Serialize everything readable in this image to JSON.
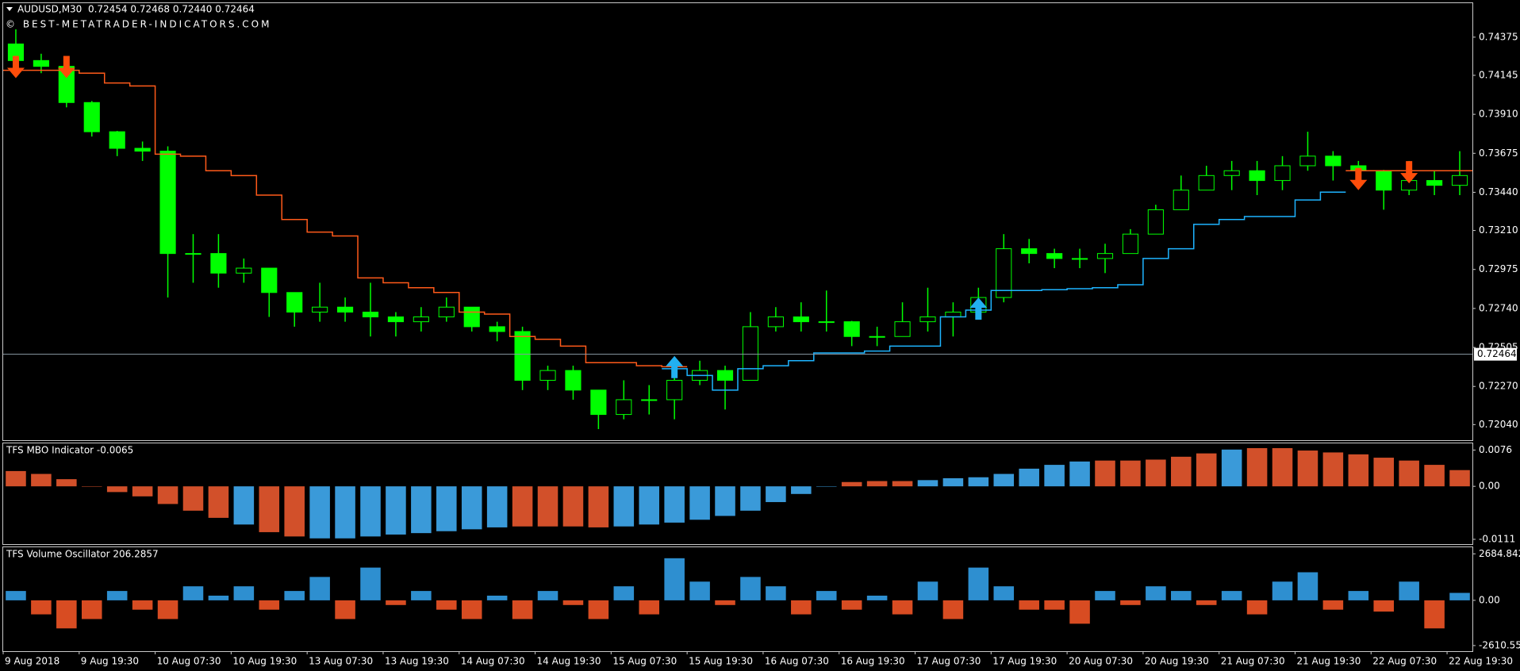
{
  "chart_data": [
    {
      "type": "candlestick",
      "title": "AUDUSD,M30  0.72454 0.72468 0.72440 0.72464",
      "annotation": "© BEST-METATRADER-INDICATORS.COM",
      "categories": [
        "9 Aug 2018",
        null,
        null,
        "9 Aug 19:30",
        null,
        null,
        "10 Aug 07:30",
        null,
        null,
        "10 Aug 19:30",
        null,
        null,
        "13 Aug 07:30",
        null,
        null,
        "13 Aug 19:30",
        null,
        null,
        "14 Aug 07:30",
        null,
        null,
        "14 Aug 19:30",
        null,
        null,
        "15 Aug 07:30",
        null,
        null,
        "15 Aug 19:30",
        null,
        null,
        "16 Aug 07:30",
        null,
        null,
        "16 Aug 19:30",
        null,
        null,
        "17 Aug 07:30",
        null,
        null,
        "17 Aug 19:30",
        null,
        null,
        "20 Aug 07:30",
        null,
        null,
        "20 Aug 19:30",
        null,
        null,
        "21 Aug 07:30",
        null,
        null,
        "21 Aug 19:30",
        null,
        null,
        "22 Aug 07:30",
        null,
        null,
        "22 Aug 19:30"
      ],
      "open": [
        0.74334,
        0.74234,
        0.74199,
        0.73981,
        0.73805,
        0.73705,
        0.73688,
        0.73071,
        0.73071,
        0.72953,
        0.72983,
        0.72836,
        0.72718,
        0.72748,
        0.72718,
        0.72689,
        0.7266,
        0.72689,
        0.72748,
        0.7263,
        0.72601,
        0.72307,
        0.72366,
        0.72248,
        0.72101,
        0.7219,
        0.7219,
        0.72307,
        0.72366,
        0.72307,
        0.7263,
        0.72689,
        0.7266,
        0.7266,
        0.72571,
        0.72571,
        0.7266,
        0.72689,
        0.72718,
        0.72806,
        0.731,
        0.73071,
        0.73041,
        0.73041,
        0.73071,
        0.73188,
        0.73335,
        0.73453,
        0.73541,
        0.7357,
        0.73511,
        0.736,
        0.73658,
        0.736,
        0.7357,
        0.73453,
        0.73511,
        0.73482
      ],
      "high": [
        0.74422,
        0.74275,
        0.74216,
        0.7399,
        0.7381,
        0.73746,
        0.73717,
        0.73188,
        0.73188,
        0.73041,
        0.72983,
        0.72836,
        0.72895,
        0.72806,
        0.72895,
        0.72718,
        0.72748,
        0.72806,
        0.72748,
        0.7266,
        0.7263,
        0.72395,
        0.72395,
        0.72248,
        0.72307,
        0.72278,
        0.72425,
        0.72425,
        0.72395,
        0.72718,
        0.72748,
        0.72777,
        0.72848,
        0.72665,
        0.7263,
        0.72777,
        0.72865,
        0.72777,
        0.72865,
        0.73188,
        0.73159,
        0.731,
        0.731,
        0.7313,
        0.73218,
        0.73365,
        0.73541,
        0.736,
        0.73629,
        0.73629,
        0.73658,
        0.73805,
        0.73688,
        0.73629,
        0.73575,
        0.73629,
        0.7357,
        0.73688
      ],
      "low": [
        0.74158,
        0.74158,
        0.73952,
        0.73776,
        0.73658,
        0.73629,
        0.72806,
        0.72895,
        0.72865,
        0.72895,
        0.72689,
        0.7263,
        0.7266,
        0.7266,
        0.72571,
        0.72571,
        0.72601,
        0.7266,
        0.72601,
        0.72542,
        0.72248,
        0.72248,
        0.7219,
        0.72013,
        0.72072,
        0.72101,
        0.72072,
        0.72278,
        0.72131,
        0.72307,
        0.72601,
        0.72601,
        0.72601,
        0.72513,
        0.72513,
        0.72571,
        0.72601,
        0.72571,
        0.72689,
        0.72777,
        0.73012,
        0.72983,
        0.72983,
        0.72953,
        0.73071,
        0.73188,
        0.73335,
        0.73453,
        0.73453,
        0.73423,
        0.73453,
        0.7357,
        0.73511,
        0.73511,
        0.73335,
        0.73423,
        0.73423,
        0.73423
      ],
      "close": [
        0.74234,
        0.74199,
        0.73981,
        0.73805,
        0.73705,
        0.73688,
        0.73071,
        0.73071,
        0.72953,
        0.72983,
        0.72836,
        0.72718,
        0.72748,
        0.72718,
        0.72689,
        0.7266,
        0.72689,
        0.72748,
        0.7263,
        0.72601,
        0.72307,
        0.72366,
        0.72248,
        0.72101,
        0.7219,
        0.7219,
        0.72307,
        0.72366,
        0.72307,
        0.7263,
        0.72689,
        0.7266,
        0.7266,
        0.72571,
        0.72571,
        0.7266,
        0.72689,
        0.72718,
        0.72806,
        0.731,
        0.73071,
        0.73041,
        0.73041,
        0.73071,
        0.73188,
        0.73335,
        0.73453,
        0.73541,
        0.7357,
        0.73511,
        0.736,
        0.73658,
        0.736,
        0.7357,
        0.73453,
        0.73511,
        0.73482,
        0.73541
      ],
      "candle_color": "#00ff00",
      "stop_down": [
        0.74175,
        0.74175,
        0.74175,
        0.74158,
        0.74099,
        0.74081,
        0.7367,
        0.73658,
        0.7357,
        0.73541,
        0.73423,
        0.73276,
        0.732,
        0.73177,
        0.72924,
        0.72895,
        0.72865,
        0.72836,
        0.72718,
        0.72706,
        0.72571,
        0.72554,
        0.72513,
        0.72413,
        0.72413,
        0.72395,
        0.72389,
        null,
        null,
        null,
        null,
        null,
        null,
        null,
        null,
        null,
        null,
        null,
        null,
        null,
        null,
        null,
        null,
        null,
        null,
        null,
        null,
        null,
        null,
        null,
        null,
        null,
        null,
        0.7357,
        0.7357,
        0.7357,
        0.7357,
        0.7357
      ],
      "stop_down_color": "#ff5a1a",
      "stop_up": [
        null,
        null,
        null,
        null,
        null,
        null,
        null,
        null,
        null,
        null,
        null,
        null,
        null,
        null,
        null,
        null,
        null,
        null,
        null,
        null,
        null,
        null,
        null,
        null,
        null,
        null,
        0.72377,
        0.72336,
        0.72248,
        0.72377,
        0.72395,
        0.72425,
        0.72472,
        0.72472,
        0.72483,
        0.72513,
        0.72513,
        0.72689,
        0.7273,
        0.72848,
        0.72848,
        0.72853,
        0.72859,
        0.72865,
        0.72883,
        0.73041,
        0.731,
        0.73247,
        0.73276,
        0.73294,
        0.73294,
        0.73394,
        0.73441,
        null,
        null,
        null,
        null,
        null
      ],
      "stop_up_color": "#1eb4ff",
      "sell_arrows": [
        0.74128,
        null,
        0.74128,
        null,
        null,
        null,
        null,
        null,
        null,
        null,
        null,
        null,
        null,
        null,
        null,
        null,
        null,
        null,
        null,
        null,
        null,
        null,
        null,
        null,
        null,
        null,
        null,
        null,
        null,
        null,
        null,
        null,
        null,
        null,
        null,
        null,
        null,
        null,
        null,
        null,
        null,
        null,
        null,
        null,
        null,
        null,
        null,
        null,
        null,
        null,
        null,
        null,
        null,
        0.73453,
        null,
        0.73494,
        null,
        null
      ],
      "buy_arrows": [
        null,
        null,
        null,
        null,
        null,
        null,
        null,
        null,
        null,
        null,
        null,
        null,
        null,
        null,
        null,
        null,
        null,
        null,
        null,
        null,
        null,
        null,
        null,
        null,
        null,
        null,
        0.72454,
        null,
        null,
        null,
        null,
        null,
        null,
        null,
        null,
        null,
        null,
        null,
        0.72806,
        null,
        null,
        null,
        null,
        null,
        null,
        null,
        null,
        null,
        null,
        null,
        null,
        null,
        null,
        null,
        null,
        null,
        null,
        null
      ],
      "sell_color": "#ff4d0a",
      "buy_color": "#22b0f0",
      "price_line": 0.72464,
      "ylim": [
        0.71946,
        0.74575
      ],
      "yticks": [
        0.74375,
        0.74145,
        {
          "value": 0.7391,
          "label": "0.73910"
        },
        0.73675,
        {
          "value": 0.7344,
          "label": "0.73440"
        },
        {
          "value": 0.7321,
          "label": "0.73210"
        },
        0.72975,
        {
          "value": 0.7274,
          "label": "0.72740"
        },
        0.72505,
        {
          "value": 0.7227,
          "label": "0.72270"
        },
        {
          "value": 0.7204,
          "label": "0.72040"
        }
      ]
    },
    {
      "type": "bar",
      "title": "TFS MBO Indicator -0.0065",
      "values": [
        0.0032,
        0.0026,
        0.0015,
        0,
        -0.0012,
        -0.0021,
        -0.0037,
        -0.0051,
        -0.0066,
        -0.008,
        -0.0096,
        -0.0105,
        -0.0109,
        -0.0109,
        -0.0105,
        -0.0101,
        -0.0098,
        -0.0094,
        -0.009,
        -0.0086,
        -0.0084,
        -0.0084,
        -0.0084,
        -0.0086,
        -0.0084,
        -0.008,
        -0.0076,
        -0.007,
        -0.0062,
        -0.0051,
        -0.0033,
        -0.0016,
        0,
        0.0009,
        0.0011,
        0.0011,
        0.0013,
        0.0017,
        0.0019,
        0.0026,
        0.0037,
        0.0045,
        0.0052,
        0.0054,
        0.0054,
        0.0056,
        0.0062,
        0.0069,
        0.0077,
        0.008,
        0.008,
        0.0075,
        0.0071,
        0.0067,
        0.006,
        0.0054,
        0.0045,
        0.0034
      ],
      "colors": [
        "#d2502a",
        "#d2502a",
        "#d2502a",
        "#d2502a",
        "#d2502a",
        "#d2502a",
        "#d2502a",
        "#d2502a",
        "#d2502a",
        "#3a9ad9",
        "#d2502a",
        "#d2502a",
        "#3a9ad9",
        "#3a9ad9",
        "#3a9ad9",
        "#3a9ad9",
        "#3a9ad9",
        "#3a9ad9",
        "#3a9ad9",
        "#3a9ad9",
        "#d2502a",
        "#d2502a",
        "#d2502a",
        "#d2502a",
        "#3a9ad9",
        "#3a9ad9",
        "#3a9ad9",
        "#3a9ad9",
        "#3a9ad9",
        "#3a9ad9",
        "#3a9ad9",
        "#3a9ad9",
        "#3a9ad9",
        "#d2502a",
        "#d2502a",
        "#d2502a",
        "#3a9ad9",
        "#3a9ad9",
        "#3a9ad9",
        "#3a9ad9",
        "#3a9ad9",
        "#3a9ad9",
        "#3a9ad9",
        "#d2502a",
        "#d2502a",
        "#d2502a",
        "#d2502a",
        "#d2502a",
        "#3a9ad9",
        "#d2502a",
        "#d2502a",
        "#d2502a",
        "#d2502a",
        "#d2502a",
        "#d2502a",
        "#d2502a",
        "#d2502a",
        "#d2502a"
      ],
      "ylim": [
        -0.0121,
        0.009
      ],
      "yticks": [
        0.0076,
        {
          "value": 0,
          "label": "0.00"
        },
        -0.0111
      ]
    },
    {
      "type": "bar",
      "title": "TFS Volume Oscillator 206.2857",
      "values": [
        540,
        -810,
        -1620,
        -1080,
        540,
        -540,
        -1080,
        810,
        270,
        810,
        -540,
        540,
        1350,
        -1080,
        1890,
        -270,
        540,
        -540,
        -1080,
        270,
        -1080,
        540,
        -270,
        -1080,
        810,
        -810,
        2430,
        1080,
        -270,
        1350,
        810,
        -810,
        540,
        -540,
        270,
        -810,
        1080,
        -1080,
        1890,
        810,
        -540,
        -540,
        -1350,
        540,
        -270,
        810,
        540,
        -270,
        540,
        -810,
        1080,
        1620,
        -540,
        540,
        -650,
        1080,
        -1620,
        430
      ],
      "up_color": "#2e8fd0",
      "down_color": "#d84c22",
      "ylim": [
        -2935,
        3063
      ],
      "yticks": [
        2684.8429,
        {
          "value": 0,
          "label": "0.00"
        },
        -2610.557
      ]
    }
  ]
}
